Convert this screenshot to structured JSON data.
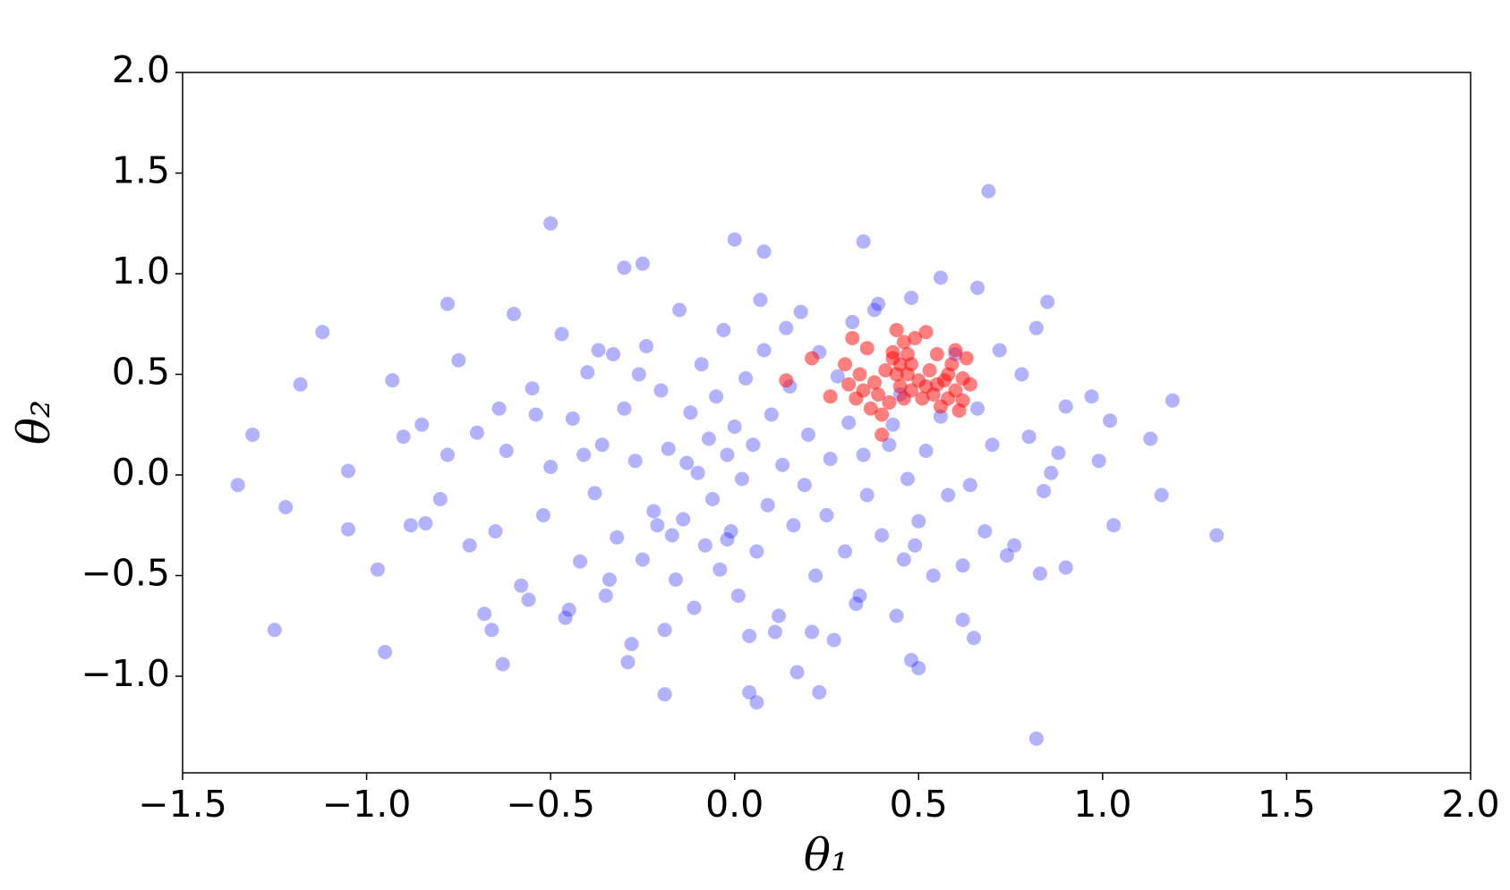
{
  "chart_data": {
    "type": "scatter",
    "xlabel": "θ₁",
    "ylabel": "θ₂",
    "xlim": [
      -1.5,
      2.0
    ],
    "ylim": [
      -1.48,
      2.0
    ],
    "xticks": [
      {
        "value": -1.5,
        "label": "−1.5"
      },
      {
        "value": -1.0,
        "label": "−1.0"
      },
      {
        "value": -0.5,
        "label": "−0.5"
      },
      {
        "value": 0.0,
        "label": "0.0"
      },
      0.5,
      {
        "value": 1.0,
        "label": "1.0"
      },
      1.5,
      {
        "value": 2.0,
        "label": "2.0"
      }
    ],
    "yticks": [
      {
        "value": -1.0,
        "label": "−1.0"
      },
      {
        "value": -0.5,
        "label": "−0.5"
      },
      {
        "value": 0.0,
        "label": "0.0"
      },
      0.5,
      {
        "value": 1.0,
        "label": "1.0"
      },
      1.5,
      {
        "value": 2.0,
        "label": "2.0"
      }
    ],
    "series": [
      {
        "color": "#0000ff",
        "alpha": 0.3,
        "x": [
          -1.35,
          -1.31,
          -1.25,
          -1.22,
          -1.18,
          -1.12,
          -1.05,
          -1.05,
          -0.97,
          -0.95,
          -0.93,
          -0.78,
          -0.5,
          -0.3,
          -0.25,
          0.0,
          0.08,
          0.35,
          0.69,
          0.56,
          0.66,
          0.85,
          0.82,
          1.31,
          1.19,
          1.13,
          1.16,
          1.03,
          0.99,
          0.97,
          1.02,
          0.9,
          0.9,
          0.83,
          0.06,
          0.04,
          -0.19,
          0.23,
          -0.63,
          0.17,
          0.5,
          0.48,
          0.62,
          0.65,
          -0.8,
          -0.75,
          -0.7,
          -0.65,
          -0.62,
          -0.6,
          -0.58,
          -0.55,
          -0.52,
          -0.5,
          -0.47,
          -0.45,
          -0.44,
          -0.42,
          -0.4,
          -0.38,
          -0.36,
          -0.35,
          -0.33,
          -0.32,
          -0.3,
          -0.28,
          -0.27,
          -0.25,
          -0.24,
          -0.22,
          -0.2,
          -0.19,
          -0.18,
          -0.16,
          -0.15,
          -0.14,
          -0.12,
          -0.11,
          -0.1,
          -0.09,
          -0.08,
          -0.07,
          -0.06,
          -0.05,
          -0.04,
          -0.03,
          -0.02,
          -0.01,
          0.0,
          0.01,
          0.02,
          0.03,
          0.04,
          0.05,
          0.06,
          0.08,
          0.09,
          0.1,
          0.12,
          0.13,
          0.15,
          0.16,
          0.18,
          0.19,
          0.2,
          0.22,
          0.23,
          0.25,
          0.26,
          0.28,
          0.3,
          0.31,
          0.33,
          0.35,
          0.36,
          0.38,
          0.4,
          0.42,
          0.44,
          0.45,
          0.47,
          0.48,
          0.5,
          0.52,
          0.54,
          0.56,
          0.58,
          0.6,
          0.62,
          0.64,
          0.66,
          0.68,
          0.7,
          0.72,
          0.74,
          0.76,
          0.78,
          0.8,
          0.82,
          0.84,
          0.86,
          0.88,
          -0.68,
          -0.72,
          -0.85,
          -0.88,
          -0.9,
          -0.84,
          -0.78,
          -0.66,
          -0.64,
          -0.56,
          -0.54,
          -0.46,
          -0.41,
          -0.37,
          -0.34,
          -0.29,
          -0.26,
          -0.21,
          -0.17,
          -0.13,
          -0.02,
          0.07,
          0.11,
          0.14,
          0.21,
          0.27,
          0.32,
          0.34,
          0.39,
          0.43,
          0.46,
          0.49
        ],
        "y": [
          -0.05,
          0.2,
          -0.77,
          -0.16,
          0.45,
          0.71,
          0.02,
          -0.27,
          -0.47,
          -0.88,
          0.47,
          0.85,
          1.25,
          1.03,
          1.05,
          1.17,
          1.11,
          1.16,
          1.41,
          0.98,
          0.93,
          0.86,
          -1.31,
          -0.3,
          0.37,
          0.18,
          -0.1,
          -0.25,
          0.07,
          0.39,
          0.27,
          0.34,
          -0.46,
          -0.49,
          -1.13,
          -1.08,
          -1.09,
          -1.08,
          -0.94,
          -0.98,
          -0.96,
          -0.92,
          -0.72,
          -0.81,
          -0.12,
          0.57,
          0.21,
          -0.28,
          0.12,
          0.8,
          -0.55,
          0.43,
          -0.2,
          0.04,
          0.7,
          -0.67,
          0.28,
          -0.43,
          0.51,
          -0.09,
          0.15,
          -0.6,
          0.6,
          -0.31,
          0.33,
          -0.84,
          0.07,
          -0.42,
          0.64,
          -0.18,
          0.42,
          -0.77,
          0.13,
          -0.52,
          0.82,
          -0.22,
          0.31,
          -0.66,
          0.01,
          0.55,
          -0.35,
          0.18,
          -0.12,
          0.39,
          -0.47,
          0.72,
          0.1,
          -0.28,
          0.24,
          -0.6,
          -0.02,
          0.48,
          -0.8,
          0.15,
          -0.38,
          0.62,
          -0.15,
          0.3,
          -0.7,
          0.05,
          0.44,
          -0.25,
          0.81,
          -0.05,
          0.2,
          -0.5,
          0.61,
          -0.2,
          0.08,
          0.49,
          -0.38,
          0.26,
          -0.64,
          0.1,
          -0.1,
          0.82,
          -0.3,
          0.15,
          -0.7,
          0.4,
          -0.02,
          0.88,
          -0.23,
          0.12,
          -0.5,
          0.29,
          -0.1,
          0.6,
          -0.45,
          -0.05,
          0.33,
          -0.28,
          0.15,
          0.62,
          -0.4,
          -0.35,
          0.5,
          0.19,
          0.73,
          -0.08,
          0.01,
          0.11,
          -0.69,
          -0.35,
          0.25,
          -0.25,
          0.19,
          -0.24,
          0.1,
          -0.77,
          0.33,
          -0.62,
          0.3,
          -0.71,
          0.1,
          0.62,
          -0.52,
          -0.93,
          0.5,
          -0.25,
          -0.3,
          0.06,
          -0.32,
          0.87,
          -0.78,
          0.73,
          -0.78,
          -0.82,
          0.76,
          -0.6,
          0.85,
          0.25,
          -0.42,
          -0.35
        ]
      },
      {
        "color": "#ff0000",
        "alpha": 0.5,
        "x": [
          0.31,
          0.32,
          0.33,
          0.34,
          0.35,
          0.36,
          0.37,
          0.38,
          0.39,
          0.4,
          0.41,
          0.42,
          0.43,
          0.44,
          0.45,
          0.45,
          0.46,
          0.46,
          0.47,
          0.47,
          0.48,
          0.48,
          0.49,
          0.5,
          0.51,
          0.52,
          0.53,
          0.54,
          0.55,
          0.56,
          0.57,
          0.58,
          0.58,
          0.59,
          0.6,
          0.6,
          0.61,
          0.62,
          0.63,
          0.64,
          0.14,
          0.21,
          0.26,
          0.3,
          0.4,
          0.43,
          0.44,
          0.52,
          0.55,
          0.62
        ],
        "y": [
          0.45,
          0.68,
          0.38,
          0.5,
          0.42,
          0.63,
          0.33,
          0.46,
          0.4,
          0.2,
          0.52,
          0.36,
          0.61,
          0.72,
          0.44,
          0.55,
          0.66,
          0.38,
          0.5,
          0.6,
          0.42,
          0.55,
          0.68,
          0.47,
          0.38,
          0.71,
          0.52,
          0.4,
          0.6,
          0.34,
          0.47,
          0.5,
          0.38,
          0.55,
          0.42,
          0.62,
          0.32,
          0.48,
          0.58,
          0.45,
          0.47,
          0.58,
          0.39,
          0.55,
          0.3,
          0.58,
          0.5,
          0.44,
          0.45,
          0.37
        ]
      }
    ]
  }
}
